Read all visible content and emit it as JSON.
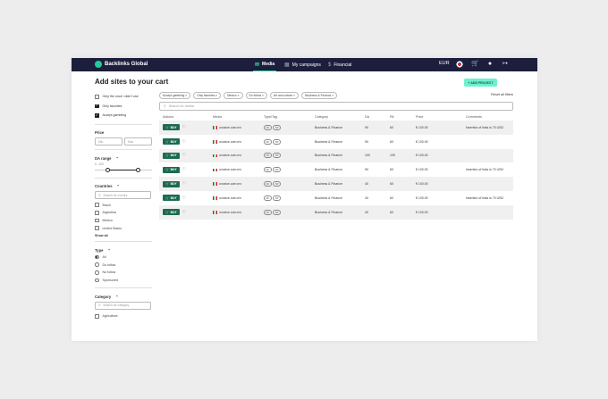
{
  "topbar": {
    "brand": "Backlinks Global",
    "nav": [
      {
        "label": "Media",
        "icon": "megaphone-icon",
        "active": true
      },
      {
        "label": "My campaigns",
        "icon": "calendar-icon",
        "active": false
      },
      {
        "label": "Financial",
        "icon": "dollar-icon",
        "active": false
      }
    ],
    "currency": "EUR"
  },
  "page": {
    "title": "Add sites to your cart",
    "add_project": "+ ADD PROJECT"
  },
  "filters": {
    "checkboxes": [
      {
        "label": "Only the once i didn't use",
        "checked": false
      },
      {
        "label": "Only favorites",
        "checked": true
      },
      {
        "label": "Accept gambling",
        "checked": true
      }
    ],
    "price": {
      "label": "Price",
      "min_placeholder": "Min",
      "max_placeholder": "Max"
    },
    "da": {
      "label": "DA range",
      "range_text": "0 - 100"
    },
    "countries": {
      "label": "Countries",
      "search_placeholder": "Search for country",
      "items": [
        "Brazil",
        "Argentina",
        "Mexico",
        "United States"
      ],
      "show_all": "Show all"
    },
    "type": {
      "label": "Type",
      "options": [
        {
          "label": "All",
          "selected": true
        },
        {
          "label": "Do follow",
          "selected": false
        },
        {
          "label": "No follow",
          "selected": false
        },
        {
          "label": "Sponsored",
          "selected": false
        }
      ]
    },
    "category": {
      "label": "Category",
      "search_placeholder": "Search for category",
      "items": [
        "Agriculture"
      ]
    }
  },
  "chips": [
    "Accept gambling ×",
    "Only favorites ×",
    "Mexico ×",
    "Do follow ×",
    "Art and culture ×",
    "Business & Finance ×"
  ],
  "reset_label": "Reset all filters",
  "search_placeholder": "Search for media",
  "table": {
    "headers": [
      "Actions",
      "Media",
      "Type/Tag",
      "Category",
      "DA",
      "PA",
      "Price",
      "Comments"
    ],
    "buy_label": "BUY",
    "rows": [
      {
        "media": "ovoxice.com.mx",
        "tags": [
          "DF",
          "SP"
        ],
        "category": "Business & Finance",
        "da": "90",
        "pa": "60",
        "price": "€ 100.00",
        "comment": "Insertion of links is 70 USD"
      },
      {
        "media": "ovoxice.com.mx",
        "tags": [
          "DF",
          "SP"
        ],
        "category": "Business & Finance",
        "da": "90",
        "pa": "60",
        "price": "€ 100.00",
        "comment": ""
      },
      {
        "media": "ovoxice.com.mx",
        "tags": [
          "DF",
          "SP"
        ],
        "category": "Business & Finance",
        "da": "100",
        "pa": "100",
        "price": "€ 100.00",
        "comment": ""
      },
      {
        "media": "ovoxice.com.mx",
        "tags": [
          "DF",
          "SP"
        ],
        "category": "Business & Finance",
        "da": "90",
        "pa": "60",
        "price": "€ 100.00",
        "comment": "Insertion of links is 70 USD"
      },
      {
        "media": "ovoxice.com.mx",
        "tags": [
          "DF",
          "SP"
        ],
        "category": "Business & Finance",
        "da": "40",
        "pa": "60",
        "price": "€ 100.00",
        "comment": ""
      },
      {
        "media": "ovoxice.com.mx",
        "tags": [
          "DF",
          "SP"
        ],
        "category": "Business & Finance",
        "da": "40",
        "pa": "60",
        "price": "€ 100.00",
        "comment": "Insertion of links is 70 USD"
      },
      {
        "media": "ovoxice.com.mx",
        "tags": [
          "DF",
          "SP"
        ],
        "category": "Business & Finance",
        "da": "40",
        "pa": "60",
        "price": "€ 100.00",
        "comment": ""
      }
    ]
  },
  "colors": {
    "topbar": "#1c1e3c",
    "accent": "#2ad6a8",
    "buy": "#1d6b4e"
  }
}
